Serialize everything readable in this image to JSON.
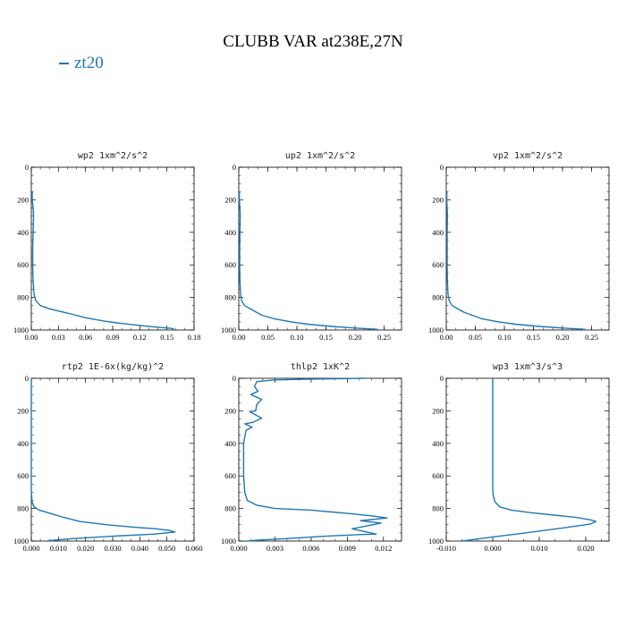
{
  "figure": {
    "title": "CLUBB VAR at238E,27N",
    "legend": [
      {
        "label": "zt20",
        "color": "#1f77b4"
      }
    ]
  },
  "chart_data": [
    {
      "type": "line",
      "title": "wp2  1xm^2/s^2",
      "xlim": [
        0,
        0.18
      ],
      "xticks": [
        0,
        0.03,
        0.06,
        0.09,
        0.12,
        0.15,
        0.18
      ],
      "xtick_labels": [
        "0.00",
        "0.03",
        "0.06",
        "0.09",
        "0.12",
        "0.15",
        "0.18"
      ],
      "ylim": [
        1000,
        0
      ],
      "yticks": [
        0,
        200,
        400,
        600,
        800,
        1000
      ],
      "ytick_labels": [
        "0",
        "200",
        "400",
        "600",
        "800",
        "1000"
      ],
      "series": [
        {
          "x": [
            0.001,
            0.001,
            0.002,
            0.0025,
            0.002,
            0.0015,
            0.0015,
            0.002,
            0.003,
            0.005,
            0.01,
            0.02,
            0.035,
            0.05,
            0.06,
            0.08,
            0.1,
            0.12,
            0.14,
            0.155,
            0.158
          ],
          "y": [
            150,
            200,
            250,
            300,
            400,
            500,
            600,
            700,
            780,
            820,
            850,
            870,
            890,
            910,
            925,
            945,
            960,
            972,
            983,
            990,
            995
          ]
        }
      ]
    },
    {
      "type": "line",
      "title": "up2  1xm^2/s^2",
      "xlim": [
        0,
        0.28
      ],
      "xticks": [
        0,
        0.05,
        0.1,
        0.15,
        0.2,
        0.25
      ],
      "xtick_labels": [
        "0.00",
        "0.05",
        "0.10",
        "0.15",
        "0.20",
        "0.25"
      ],
      "ylim": [
        1000,
        0
      ],
      "yticks": [
        0,
        200,
        400,
        600,
        800,
        1000
      ],
      "ytick_labels": [
        "0",
        "200",
        "400",
        "600",
        "800",
        "1000"
      ],
      "series": [
        {
          "x": [
            0.001,
            0.001,
            0.002,
            0.0025,
            0.002,
            0.0015,
            0.0015,
            0.002,
            0.003,
            0.005,
            0.01,
            0.02,
            0.03,
            0.04,
            0.06,
            0.09,
            0.12,
            0.16,
            0.2,
            0.23,
            0.24
          ],
          "y": [
            150,
            200,
            250,
            300,
            400,
            500,
            600,
            700,
            780,
            820,
            850,
            870,
            890,
            910,
            930,
            950,
            965,
            978,
            988,
            994,
            997
          ]
        }
      ]
    },
    {
      "type": "line",
      "title": "vp2  1xm^2/s^2",
      "xlim": [
        0,
        0.28
      ],
      "xticks": [
        0,
        0.05,
        0.1,
        0.15,
        0.2,
        0.25
      ],
      "xtick_labels": [
        "0.00",
        "0.05",
        "0.10",
        "0.15",
        "0.20",
        "0.25"
      ],
      "ylim": [
        1000,
        0
      ],
      "yticks": [
        0,
        200,
        400,
        600,
        800,
        1000
      ],
      "ytick_labels": [
        "0",
        "200",
        "400",
        "600",
        "800",
        "1000"
      ],
      "series": [
        {
          "x": [
            0.001,
            0.001,
            0.0015,
            0.002,
            0.0015,
            0.0015,
            0.0015,
            0.002,
            0.003,
            0.005,
            0.01,
            0.02,
            0.03,
            0.045,
            0.06,
            0.09,
            0.12,
            0.16,
            0.2,
            0.23,
            0.24
          ],
          "y": [
            150,
            200,
            250,
            300,
            400,
            500,
            600,
            700,
            780,
            820,
            850,
            870,
            890,
            910,
            930,
            950,
            965,
            978,
            988,
            994,
            997
          ]
        }
      ]
    },
    {
      "type": "line",
      "title": "rtp2  1E-6x(kg/kg)^2",
      "xlim": [
        0,
        0.06
      ],
      "xticks": [
        0,
        0.01,
        0.02,
        0.03,
        0.04,
        0.05,
        0.06
      ],
      "xtick_labels": [
        "0.000",
        "0.010",
        "0.020",
        "0.030",
        "0.040",
        "0.050",
        "0.060"
      ],
      "ylim": [
        1000,
        0
      ],
      "yticks": [
        0,
        200,
        400,
        600,
        800,
        1000
      ],
      "ytick_labels": [
        "0",
        "200",
        "400",
        "600",
        "800",
        "1000"
      ],
      "series": [
        {
          "x": [
            0,
            0,
            0,
            0,
            0.0003,
            0.001,
            0.003,
            0.007,
            0.012,
            0.018,
            0.028,
            0.038,
            0.046,
            0.051,
            0.053,
            0.045,
            0.03,
            0.015,
            0.006
          ],
          "y": [
            0,
            200,
            400,
            700,
            760,
            790,
            810,
            830,
            855,
            880,
            900,
            915,
            925,
            935,
            945,
            958,
            970,
            985,
            998
          ]
        }
      ]
    },
    {
      "type": "line",
      "title": "thlp2  1xK^2",
      "xlim": [
        0,
        0.0135
      ],
      "xticks": [
        0,
        0.003,
        0.006,
        0.009,
        0.012
      ],
      "xtick_labels": [
        "0.000",
        "0.003",
        "0.006",
        "0.009",
        "0.012"
      ],
      "ylim": [
        1000,
        0
      ],
      "yticks": [
        0,
        200,
        400,
        600,
        800,
        1000
      ],
      "ytick_labels": [
        "0",
        "200",
        "400",
        "600",
        "800",
        "1000"
      ],
      "series": [
        {
          "x": [
            0.0104,
            0.006,
            0.003,
            0.0015,
            0.0013,
            0.0016,
            0.001,
            0.0019,
            0.0015,
            0.0014,
            0.0009,
            0.0014,
            0.0019,
            0.0012,
            0.0005,
            0.0011,
            0.0006,
            0.0004,
            0.0004,
            0.0004,
            0.0005,
            0.0007,
            0.0015,
            0.003,
            0.006,
            0.009,
            0.011,
            0.0123,
            0.0101,
            0.0118,
            0.0094,
            0.0114,
            0.0102,
            0.0072,
            0.0039,
            0.0015,
            0.0007
          ],
          "y": [
            0,
            5,
            10,
            20,
            50,
            80,
            100,
            130,
            160,
            200,
            205,
            225,
            245,
            270,
            280,
            300,
            320,
            400,
            500,
            600,
            700,
            750,
            780,
            800,
            810,
            830,
            845,
            858,
            875,
            890,
            925,
            958,
            960,
            970,
            985,
            995,
            1000
          ]
        }
      ]
    },
    {
      "type": "line",
      "title": "wp3  1xm^3/s^3",
      "xlim": [
        -0.01,
        0.025
      ],
      "xticks": [
        -0.01,
        0,
        0.01,
        0.02
      ],
      "xtick_labels": [
        "-0.010",
        "0.000",
        "0.010",
        "0.020"
      ],
      "ylim": [
        1000,
        0
      ],
      "yticks": [
        0,
        200,
        400,
        600,
        800,
        1000
      ],
      "ytick_labels": [
        "0",
        "200",
        "400",
        "600",
        "800",
        "1000"
      ],
      "series": [
        {
          "x": [
            0,
            0,
            0,
            0,
            0.0001,
            0.0005,
            0.0015,
            0.004,
            0.008,
            0.013,
            0.018,
            0.021,
            0.0222,
            0.021,
            0.015,
            0.007,
            0.0,
            -0.004,
            -0.0065
          ],
          "y": [
            0,
            200,
            400,
            680,
            720,
            760,
            790,
            810,
            825,
            840,
            855,
            870,
            880,
            895,
            920,
            950,
            975,
            990,
            1000
          ]
        }
      ]
    }
  ]
}
